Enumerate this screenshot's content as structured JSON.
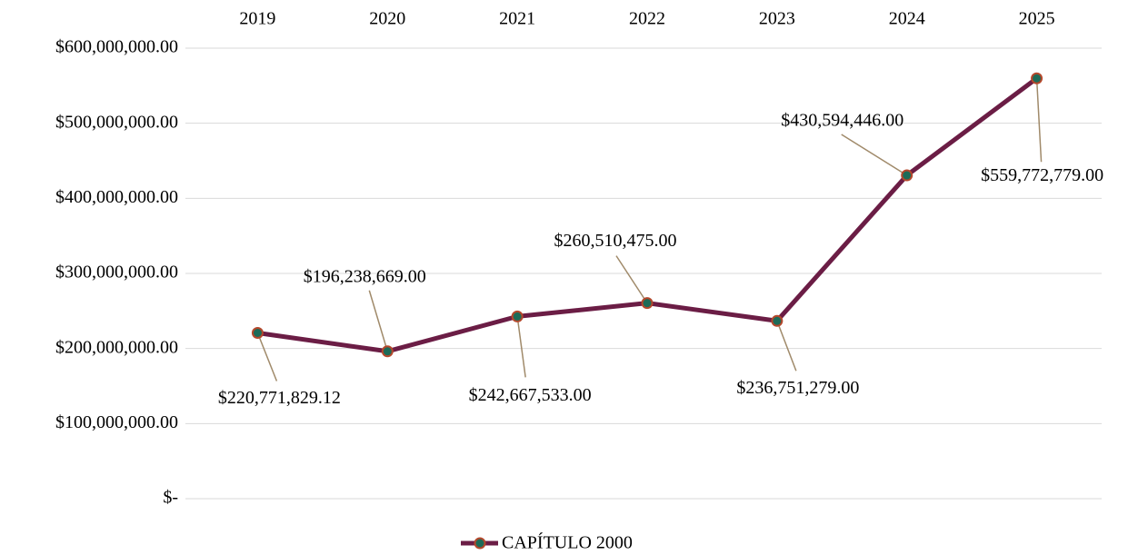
{
  "chart_data": {
    "type": "line",
    "categories": [
      "2019",
      "2020",
      "2021",
      "2022",
      "2023",
      "2024",
      "2025"
    ],
    "series": [
      {
        "name": "CAPÍTULO 2000",
        "color": "#6b1d45",
        "marker_fill": "#1d6b58",
        "marker_edge": "#b4482c",
        "values": [
          220771829.12,
          196238669,
          242667533,
          260510475,
          236751279,
          430594446,
          559772779
        ],
        "value_labels": [
          "$220,771,829.12",
          "$196,238,669.00",
          "$242,667,533.00",
          "$260,510,475.00",
          "$236,751,279.00",
          "$430,594,446.00",
          "$559,772,779.00"
        ]
      }
    ],
    "ylim": [
      0,
      600000000
    ],
    "yticks": [
      {
        "value": 0,
        "label": "$-"
      },
      {
        "value": 100000000,
        "label": "$100,000,000.00"
      },
      {
        "value": 200000000,
        "label": "$200,000,000.00"
      },
      {
        "value": 300000000,
        "label": "$300,000,000.00"
      },
      {
        "value": 400000000,
        "label": "$400,000,000.00"
      },
      {
        "value": 500000000,
        "label": "$500,000,000.00"
      },
      {
        "value": 600000000,
        "label": "$600,000,000.00"
      }
    ],
    "grid": true,
    "leader_line_color": "#a08a6a",
    "legend": "bottom"
  }
}
